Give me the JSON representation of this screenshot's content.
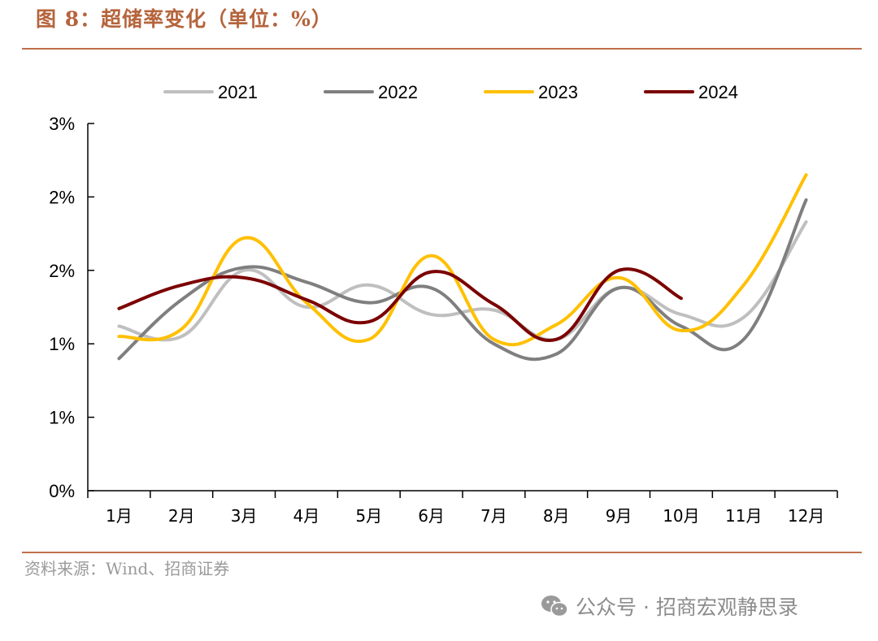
{
  "title": "图 8：超储率变化（单位：%）",
  "source": "资料来源：Wind、招商证券",
  "watermark": {
    "icon": "wechat-icon",
    "text": "公众号 · 招商宏观静思录"
  },
  "colors": {
    "accent": "#c0704a",
    "text_accent": "#b5643c"
  },
  "chart_data": {
    "type": "line",
    "title": "",
    "xlabel": "",
    "ylabel": "",
    "categories": [
      "1月",
      "2月",
      "3月",
      "4月",
      "5月",
      "6月",
      "7月",
      "8月",
      "9月",
      "10月",
      "11月",
      "12月"
    ],
    "ylim": [
      0,
      2.5
    ],
    "yticks": [
      0,
      0.5,
      1.0,
      1.5,
      2.0,
      2.5
    ],
    "ytick_labels": [
      "0%",
      "1%",
      "1%",
      "2%",
      "2%",
      "3%"
    ],
    "legend_position": "top",
    "grid": false,
    "series": [
      {
        "name": "2021",
        "color": "#bfbfbf",
        "values": [
          1.12,
          1.05,
          1.5,
          1.25,
          1.4,
          1.2,
          1.23,
          1.03,
          1.38,
          1.2,
          1.18,
          1.83
        ]
      },
      {
        "name": "2022",
        "color": "#7f7f7f",
        "values": [
          0.9,
          1.3,
          1.52,
          1.42,
          1.28,
          1.38,
          1.0,
          0.93,
          1.38,
          1.12,
          1.03,
          1.98
        ]
      },
      {
        "name": "2023",
        "color": "#ffc000",
        "values": [
          1.05,
          1.1,
          1.72,
          1.28,
          1.03,
          1.6,
          1.03,
          1.13,
          1.45,
          1.09,
          1.4,
          2.15
        ]
      },
      {
        "name": "2024",
        "color": "#7b0000",
        "values": [
          1.24,
          1.4,
          1.45,
          1.3,
          1.15,
          1.49,
          1.27,
          1.03,
          1.5,
          1.31,
          null,
          null
        ]
      }
    ]
  }
}
